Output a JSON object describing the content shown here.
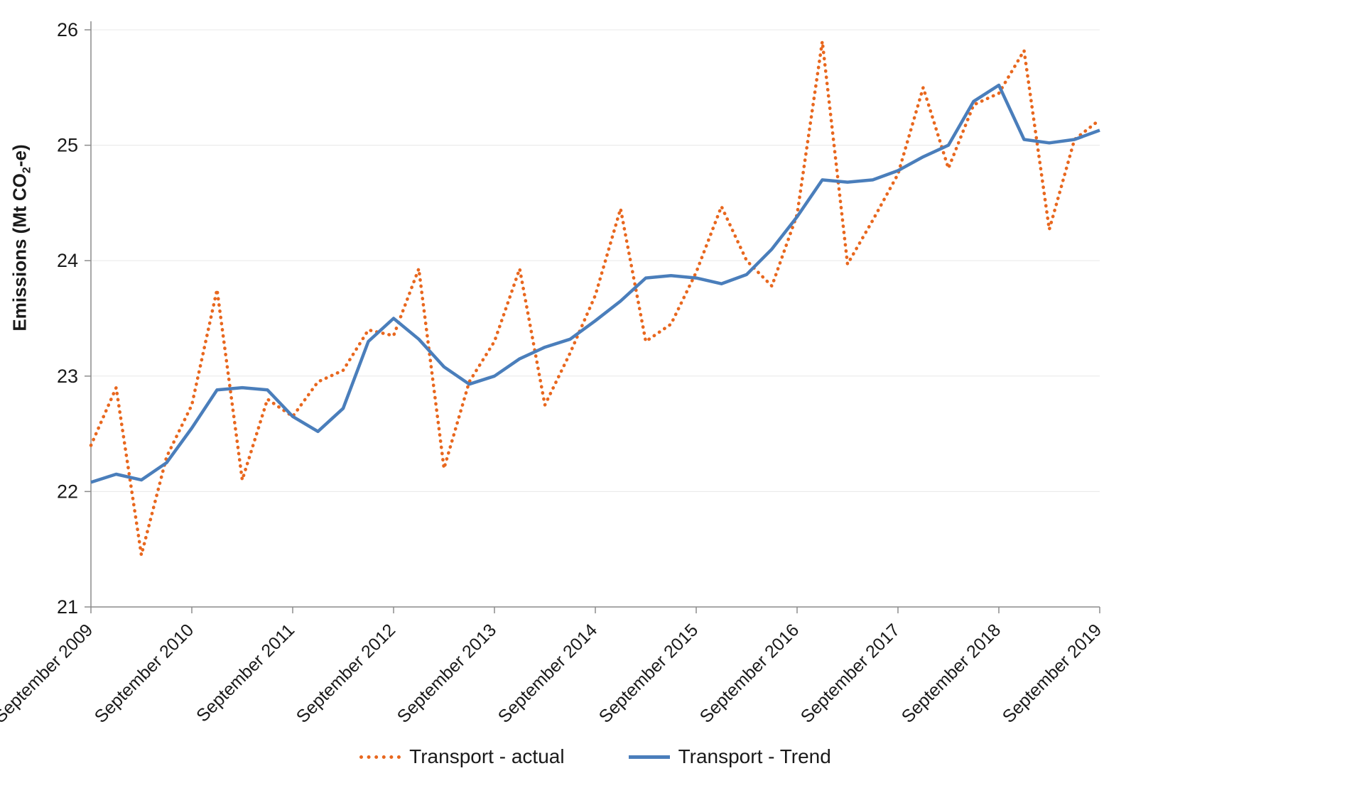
{
  "chart_data": {
    "type": "line",
    "title": "",
    "ylabel": "Emissions (Mt CO2-e)",
    "ylabel_parts": {
      "prefix": "Emissions (Mt CO",
      "sub": "2",
      "suffix": "-e)"
    },
    "y_axis": {
      "min": 21,
      "max": 26,
      "tick_step": 1,
      "ticks": [
        21,
        22,
        23,
        24,
        25,
        26
      ]
    },
    "x_tick_labels": [
      "September 2009",
      "September 2010",
      "September 2011",
      "September 2012",
      "September 2013",
      "September 2014",
      "September 2015",
      "September 2016",
      "September 2017",
      "September 2018",
      "September 2019"
    ],
    "x": [
      "Sep 2009",
      "Dec 2009",
      "Mar 2010",
      "Jun 2010",
      "Sep 2010",
      "Dec 2010",
      "Mar 2011",
      "Jun 2011",
      "Sep 2011",
      "Dec 2011",
      "Mar 2012",
      "Jun 2012",
      "Sep 2012",
      "Dec 2012",
      "Mar 2013",
      "Jun 2013",
      "Sep 2013",
      "Dec 2013",
      "Mar 2014",
      "Jun 2014",
      "Sep 2014",
      "Dec 2014",
      "Mar 2015",
      "Jun 2015",
      "Sep 2015",
      "Dec 2015",
      "Mar 2016",
      "Jun 2016",
      "Sep 2016",
      "Dec 2016",
      "Mar 2017",
      "Jun 2017",
      "Sep 2017",
      "Dec 2017",
      "Mar 2018",
      "Jun 2018",
      "Sep 2018",
      "Dec 2018",
      "Mar 2019",
      "Jun 2019",
      "Sep 2019"
    ],
    "series": [
      {
        "name": "Transport - actual",
        "color": "#e8671e",
        "style": "dotted",
        "values": [
          22.4,
          22.9,
          21.45,
          22.3,
          22.75,
          23.75,
          22.1,
          22.8,
          22.65,
          22.95,
          23.05,
          23.4,
          23.35,
          23.93,
          22.2,
          22.95,
          23.3,
          23.93,
          22.75,
          23.2,
          23.7,
          24.45,
          23.3,
          23.45,
          23.9,
          24.47,
          24.0,
          23.78,
          24.4,
          25.9,
          23.97,
          24.35,
          24.75,
          25.5,
          24.8,
          25.35,
          25.45,
          25.82,
          24.27,
          25.05,
          25.22
        ]
      },
      {
        "name": "Transport - Trend",
        "color": "#4a7ebb",
        "style": "solid",
        "values": [
          22.08,
          22.15,
          22.1,
          22.25,
          22.55,
          22.88,
          22.9,
          22.88,
          22.65,
          22.52,
          22.72,
          23.3,
          23.5,
          23.32,
          23.08,
          22.93,
          23.0,
          23.15,
          23.25,
          23.32,
          23.48,
          23.65,
          23.85,
          23.87,
          23.85,
          23.8,
          23.88,
          24.1,
          24.38,
          24.7,
          24.68,
          24.7,
          24.78,
          24.9,
          25.0,
          25.38,
          25.52,
          25.05,
          25.02,
          25.05,
          25.13
        ]
      }
    ],
    "legend": {
      "position": "bottom",
      "items": [
        "Transport - actual",
        "Transport - Trend"
      ]
    },
    "grid": true,
    "axis_color": "#8c8c8c",
    "grid_color": "#e8e8e8",
    "text_color": "#1a1a1a",
    "ylim": [
      21,
      26
    ]
  }
}
